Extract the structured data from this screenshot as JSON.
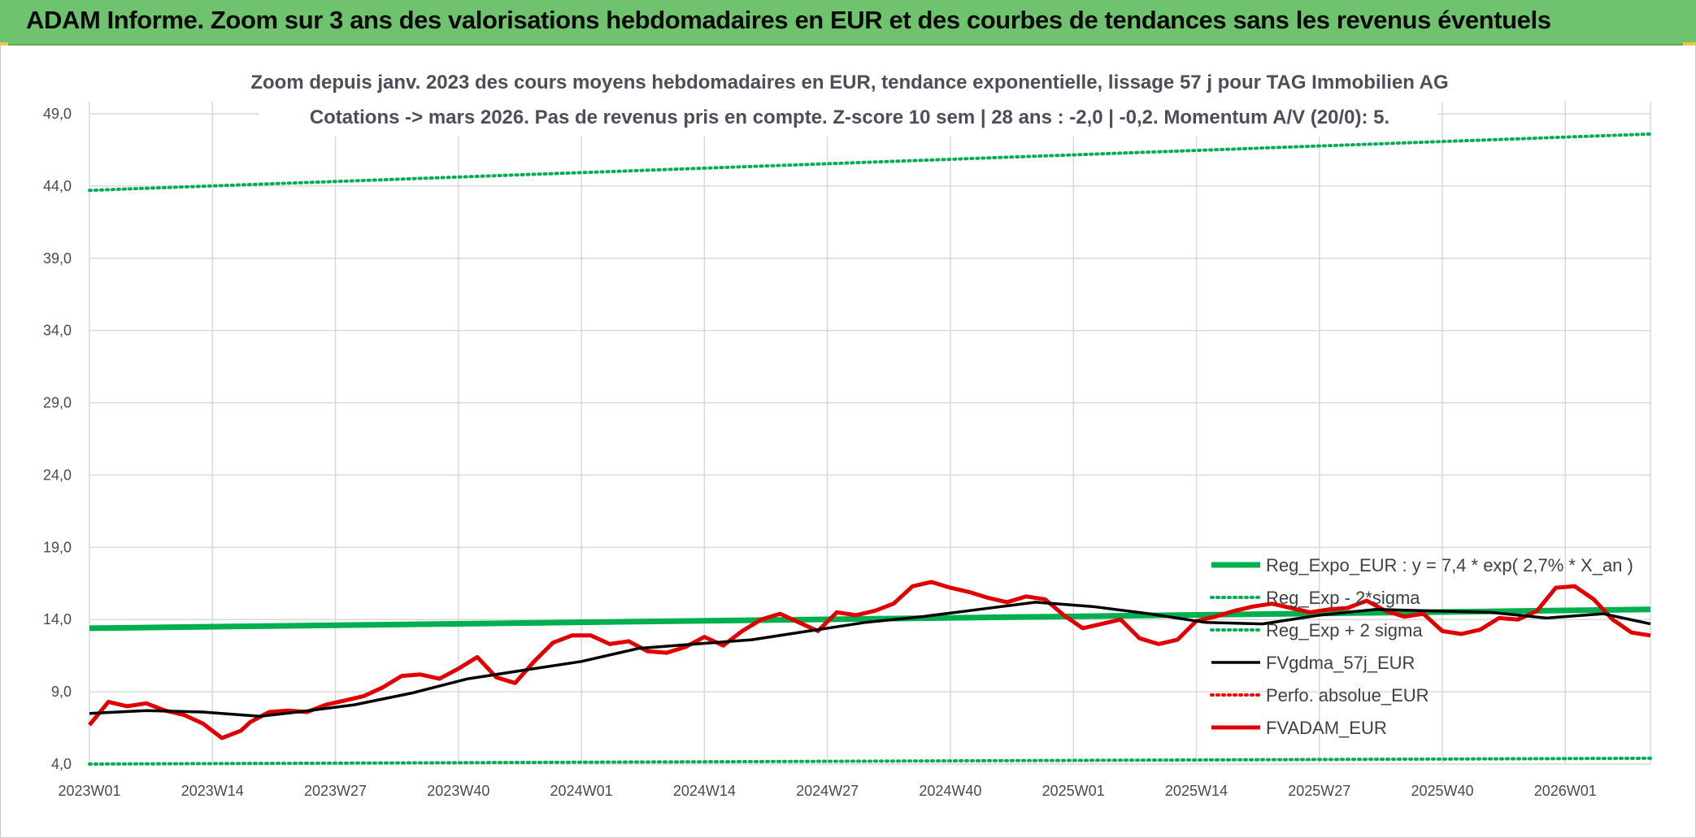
{
  "banner": {
    "title": "ADAM Informe. Zoom sur 3 ans des valorisations hebdomadaires en EUR et des courbes de tendances sans les revenus éventuels"
  },
  "colors": {
    "banner": "#6fc36f",
    "regression": "#00b050",
    "band": "#00b050",
    "smooth": "#000000",
    "perfo": "#ff0000",
    "price": "#e00000",
    "grid": "#d9d9d9"
  },
  "chart_data": {
    "type": "line",
    "title_line1": "Zoom depuis janv. 2023 des cours moyens hebdomadaires en EUR, tendance exponentielle, lissage 57 j pour TAG Immobilien AG",
    "title_line2": "Cotations -> mars 2026. Pas de revenus pris en compte. Z-score 10 sem | 28 ans : -2,0 | -0,2. Momentum A/V (20/0): 5.",
    "x_tick_labels": [
      "2023W01",
      "2023W14",
      "2023W27",
      "2023W40",
      "2024W01",
      "2024W14",
      "2024W27",
      "2024W40",
      "2025W01",
      "2025W14",
      "2025W27",
      "2025W40",
      "2026W01"
    ],
    "y_tick_labels": [
      "4,0",
      "9,0",
      "14,0",
      "19,0",
      "24,0",
      "29,0",
      "34,0",
      "39,0",
      "44,0",
      "49,0"
    ],
    "ylim": [
      4,
      49
    ],
    "week_count": 166,
    "grid": true,
    "legend_position": "bottom-right",
    "series": [
      {
        "name": "Reg_Expo_EUR : y = 7,4 * exp( 2,7% *  X_an )",
        "style": "solid-thick",
        "color": "#00b050",
        "x": [
          0,
          165
        ],
        "values": [
          13.4,
          14.7
        ]
      },
      {
        "name": "Reg_Exp - 2*sigma",
        "style": "dotted",
        "color": "#00b050",
        "x": [
          0,
          165
        ],
        "values": [
          4.0,
          4.4
        ]
      },
      {
        "name": "Reg_Exp + 2 sigma",
        "style": "dotted",
        "color": "#00b050",
        "x": [
          0,
          165
        ],
        "values": [
          43.7,
          47.6
        ]
      },
      {
        "name": "FVgdma_57j_EUR",
        "style": "solid",
        "color": "#000000",
        "x": [
          0,
          6,
          12,
          18,
          22,
          28,
          34,
          40,
          46,
          52,
          58,
          64,
          70,
          76,
          82,
          88,
          94,
          100,
          106,
          112,
          118,
          124,
          130,
          136,
          142,
          148,
          154,
          160,
          165
        ],
        "values": [
          7.5,
          7.7,
          7.6,
          7.3,
          7.6,
          8.1,
          8.9,
          9.9,
          10.5,
          11.1,
          12.0,
          12.3,
          12.6,
          13.2,
          13.8,
          14.2,
          14.7,
          15.2,
          14.9,
          14.4,
          13.8,
          13.7,
          14.3,
          14.7,
          14.6,
          14.5,
          14.1,
          14.4,
          13.7
        ]
      },
      {
        "name": "Perfo. absolue_EUR",
        "style": "dotted",
        "color": "#ff0000",
        "x": [],
        "values": []
      },
      {
        "name": "FVADAM_EUR",
        "style": "solid-thick",
        "color": "#e00000",
        "x": [
          0,
          2,
          4,
          6,
          8,
          10,
          12,
          14,
          16,
          17,
          19,
          21,
          23,
          25,
          27,
          29,
          31,
          33,
          35,
          37,
          39,
          41,
          43,
          45,
          47,
          49,
          51,
          53,
          55,
          57,
          59,
          61,
          63,
          65,
          67,
          69,
          71,
          73,
          75,
          77,
          79,
          81,
          83,
          85,
          87,
          89,
          91,
          93,
          95,
          97,
          99,
          101,
          103,
          105,
          107,
          109,
          111,
          113,
          115,
          117,
          119,
          121,
          123,
          125,
          127,
          129,
          131,
          133,
          135,
          137,
          139,
          141,
          143,
          145,
          147,
          149,
          151,
          153,
          155,
          157,
          159,
          161,
          163,
          165
        ],
        "values": [
          6.7,
          8.3,
          8.0,
          8.2,
          7.7,
          7.4,
          6.8,
          5.8,
          6.3,
          6.9,
          7.6,
          7.7,
          7.6,
          8.1,
          8.4,
          8.7,
          9.3,
          10.1,
          10.2,
          9.9,
          10.6,
          11.4,
          10.0,
          9.6,
          11.1,
          12.4,
          12.9,
          12.9,
          12.3,
          12.5,
          11.8,
          11.7,
          12.1,
          12.8,
          12.2,
          13.2,
          14.0,
          14.4,
          13.8,
          13.2,
          14.5,
          14.3,
          14.6,
          15.1,
          16.3,
          16.6,
          16.2,
          15.9,
          15.5,
          15.2,
          15.6,
          15.4,
          14.3,
          13.4,
          13.7,
          14.0,
          12.7,
          12.3,
          12.6,
          13.9,
          14.2,
          14.6,
          14.9,
          15.1,
          14.8,
          14.5,
          14.7,
          14.8,
          15.3,
          14.6,
          14.2,
          14.4,
          13.2,
          13.0,
          13.3,
          14.1,
          14.0,
          14.6,
          16.2,
          16.3,
          15.4,
          14.0,
          13.1,
          12.9
        ]
      }
    ]
  }
}
